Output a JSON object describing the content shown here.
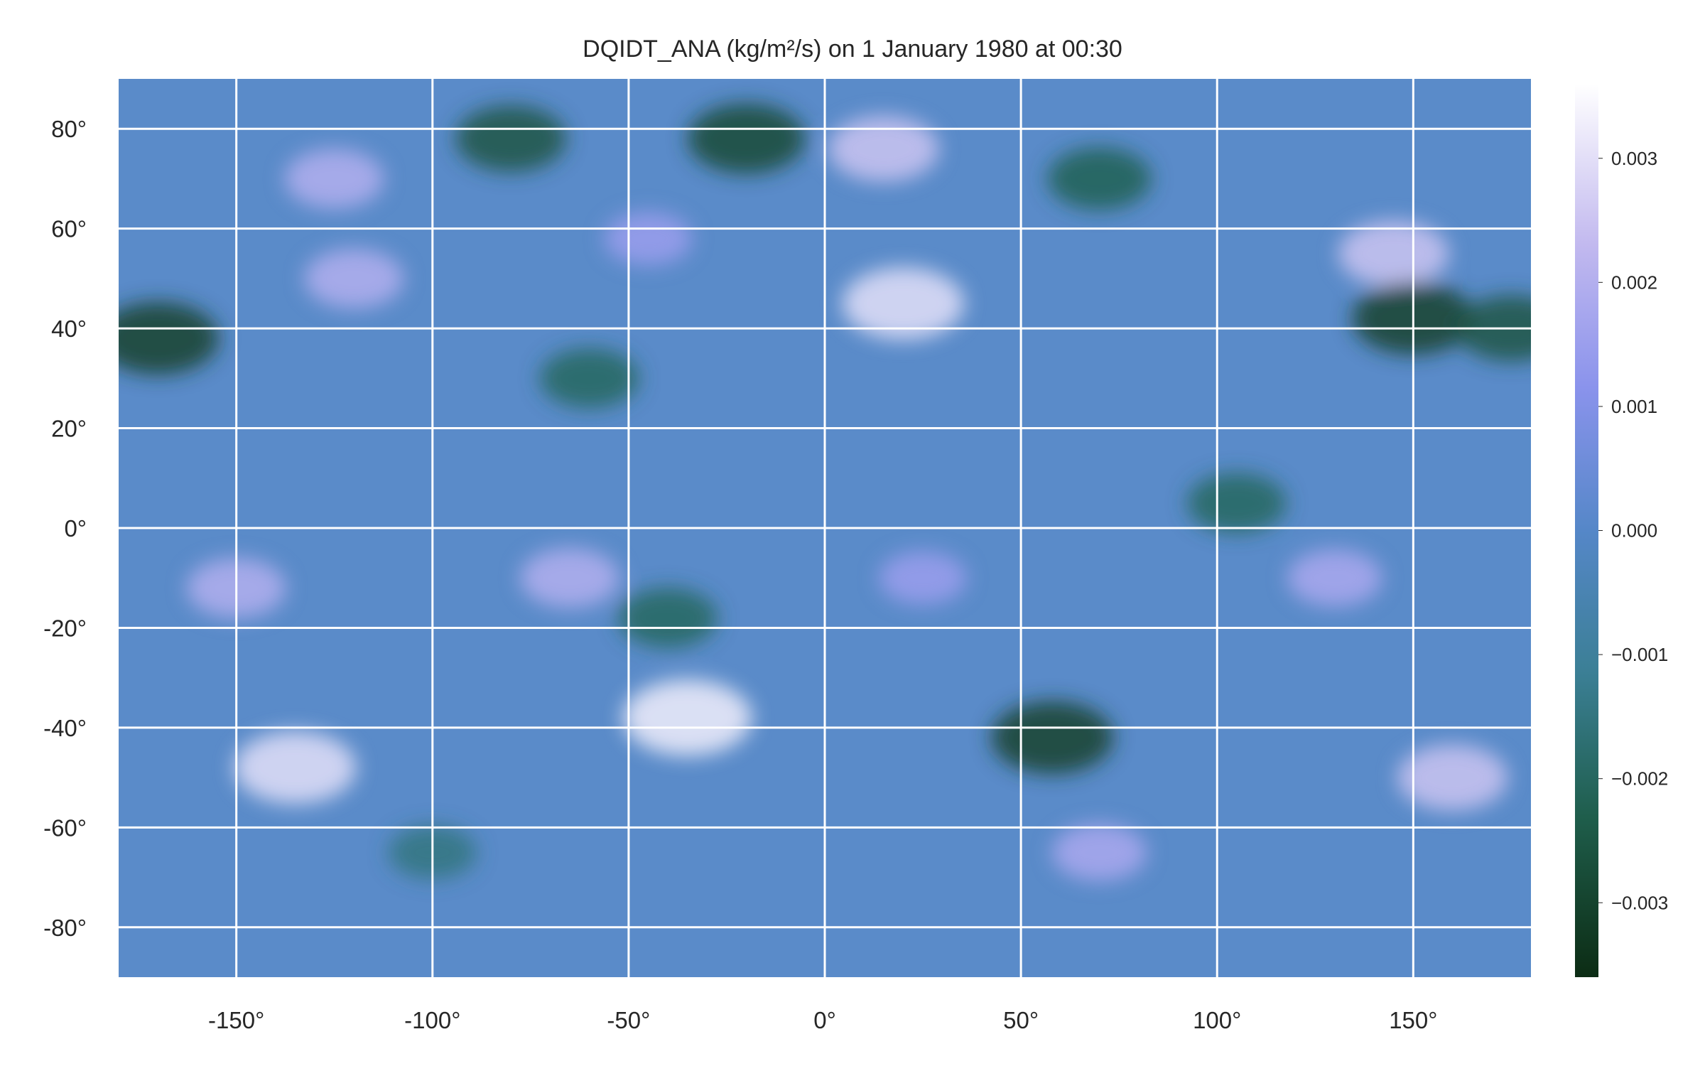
{
  "chart_data": {
    "type": "heatmap",
    "title": "DQIDT_ANA (kg/m²/s) on 1 January 1980 at 00:30",
    "xlabel": "",
    "ylabel": "",
    "xlim": [
      -180,
      180
    ],
    "ylim": [
      -90,
      90
    ],
    "x_ticks": [
      -150,
      -100,
      -50,
      0,
      50,
      100,
      150
    ],
    "x_tick_labels": [
      "-150°",
      "-100°",
      "-50°",
      "0°",
      "50°",
      "100°",
      "150°"
    ],
    "y_ticks": [
      80,
      60,
      40,
      20,
      0,
      -20,
      -40,
      -60,
      -80
    ],
    "y_tick_labels": [
      "80°",
      "60°",
      "40°",
      "20°",
      "0°",
      "-20°",
      "-40°",
      "-60°",
      "-80°"
    ],
    "grid": true,
    "colormap": "cubehelix-like (dark green → teal → blue → lavender → white)",
    "colorbar": {
      "range": [
        -0.0036,
        0.0036
      ],
      "ticks": [
        0.003,
        0.002,
        0.001,
        0.0,
        -0.001,
        -0.002,
        -0.003
      ],
      "tick_labels": [
        "0.003",
        "0.002",
        "0.001",
        "0.000",
        "−0.001",
        "−0.002",
        "−0.003"
      ],
      "placement": "right"
    },
    "features": [
      {
        "lon": -170,
        "lat": 38,
        "value": -0.003
      },
      {
        "lon": -125,
        "lat": 70,
        "value": 0.002
      },
      {
        "lon": -120,
        "lat": 50,
        "value": 0.002
      },
      {
        "lon": -45,
        "lat": 58,
        "value": 0.0015
      },
      {
        "lon": 20,
        "lat": 45,
        "value": 0.003
      },
      {
        "lon": 15,
        "lat": 76,
        "value": 0.0025
      },
      {
        "lon": -20,
        "lat": 78,
        "value": -0.0028
      },
      {
        "lon": -80,
        "lat": 78,
        "value": -0.0025
      },
      {
        "lon": 70,
        "lat": 70,
        "value": -0.0022
      },
      {
        "lon": 145,
        "lat": 55,
        "value": 0.0025
      },
      {
        "lon": 150,
        "lat": 42,
        "value": -0.003
      },
      {
        "lon": 175,
        "lat": 40,
        "value": -0.0025
      },
      {
        "lon": -150,
        "lat": -12,
        "value": 0.002
      },
      {
        "lon": -65,
        "lat": -10,
        "value": 0.002
      },
      {
        "lon": -40,
        "lat": -18,
        "value": -0.002
      },
      {
        "lon": -35,
        "lat": -38,
        "value": 0.0033
      },
      {
        "lon": -135,
        "lat": -48,
        "value": 0.003
      },
      {
        "lon": 58,
        "lat": -42,
        "value": -0.003
      },
      {
        "lon": 25,
        "lat": -10,
        "value": 0.0015
      },
      {
        "lon": 130,
        "lat": -10,
        "value": 0.0018
      },
      {
        "lon": 105,
        "lat": 5,
        "value": -0.002
      },
      {
        "lon": 160,
        "lat": -50,
        "value": 0.0025
      },
      {
        "lon": -100,
        "lat": -65,
        "value": -0.0015
      },
      {
        "lon": 70,
        "lat": -65,
        "value": 0.0018
      },
      {
        "lon": -60,
        "lat": 30,
        "value": -0.002
      }
    ]
  }
}
